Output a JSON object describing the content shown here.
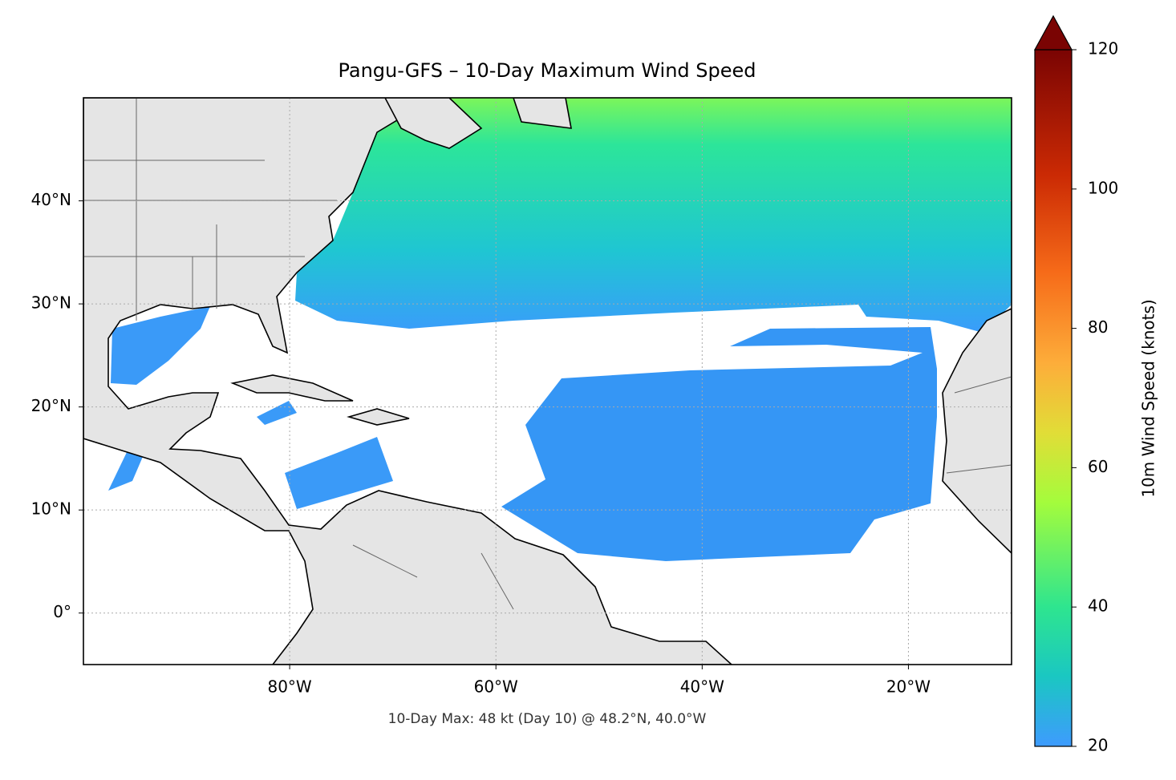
{
  "chart_data": {
    "type": "map",
    "title": "Pangu-GFS – 10-Day Maximum Wind Speed",
    "annotation": "10-Day Max: 48 kt (Day 10) @ 48.2°N, 40.0°W",
    "xlim": [
      -100,
      -10
    ],
    "ylim": [
      -5,
      50
    ],
    "xticks": [
      {
        "value": -80,
        "label": "80°W"
      },
      {
        "value": -60,
        "label": "60°W"
      },
      {
        "value": -40,
        "label": "40°W"
      },
      {
        "value": -20,
        "label": "20°W"
      }
    ],
    "yticks": [
      {
        "value": 0,
        "label": "0°"
      },
      {
        "value": 10,
        "label": "10°N"
      },
      {
        "value": 20,
        "label": "20°N"
      },
      {
        "value": 30,
        "label": "30°N"
      },
      {
        "value": 40,
        "label": "40°N"
      }
    ],
    "grid": true,
    "colorbar": {
      "label": "10m Wind Speed (knots)",
      "lim": [
        20,
        120
      ],
      "ticks": [
        20,
        40,
        60,
        80,
        100,
        120
      ],
      "extend": "max"
    }
  }
}
